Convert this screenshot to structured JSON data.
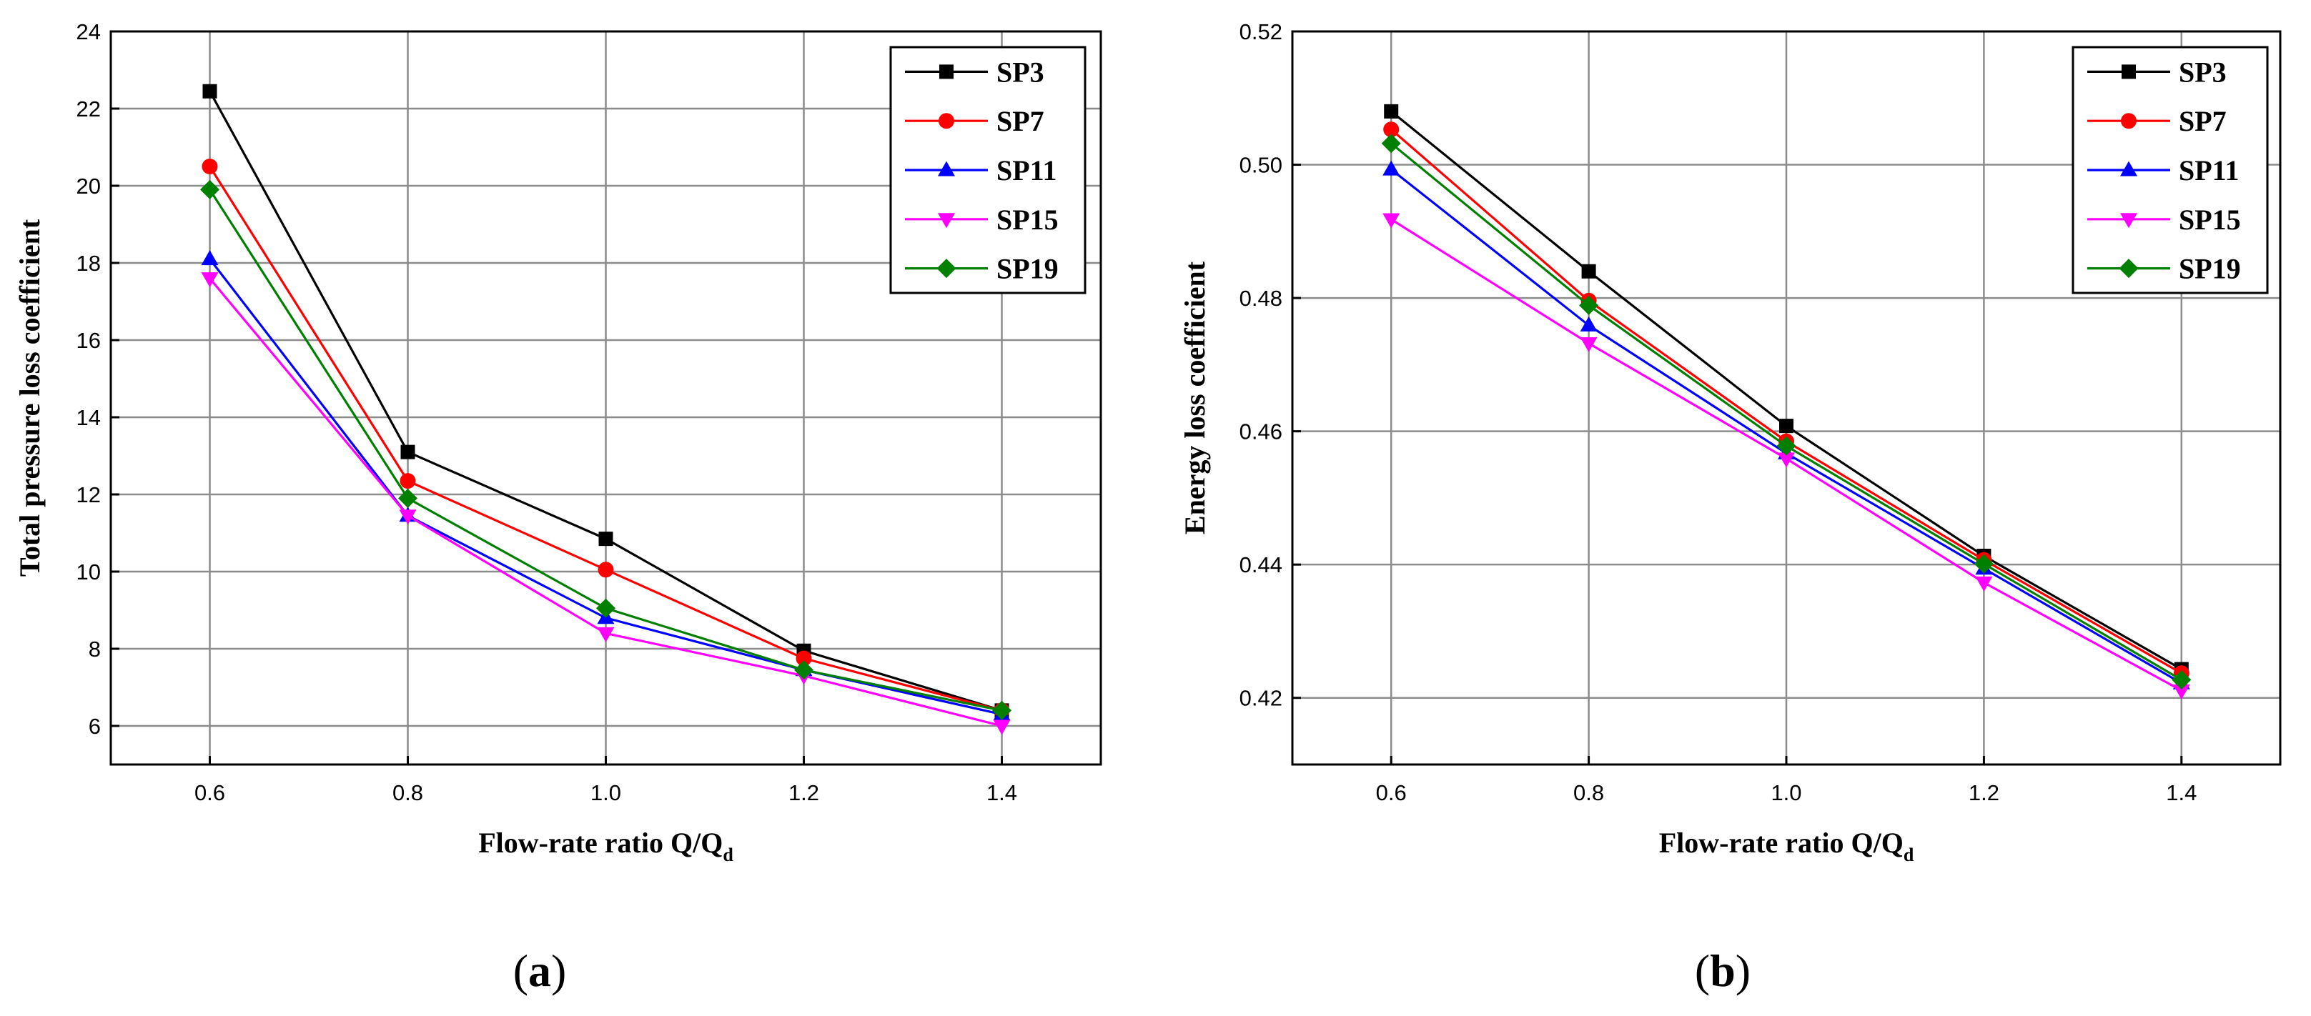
{
  "chart_data": [
    {
      "panel": "(a)",
      "panel_letter": "a",
      "type": "line",
      "title": "",
      "xlabel": "Flow-rate ratio Q/Q",
      "xlabel_subscript": "d",
      "ylabel": "Total pressure loss coefficient",
      "x": [
        0.6,
        0.8,
        1.0,
        1.2,
        1.4
      ],
      "xlim": [
        0.5,
        1.5
      ],
      "ylim": [
        5,
        24
      ],
      "xticks": [
        0.6,
        0.8,
        1.0,
        1.2,
        1.4
      ],
      "xtick_labels": [
        "0.6",
        "0.8",
        "1.0",
        "1.2",
        "1.4"
      ],
      "yticks": [
        6,
        8,
        10,
        12,
        14,
        16,
        18,
        20,
        22,
        24
      ],
      "ytick_labels": [
        "6",
        "8",
        "10",
        "12",
        "14",
        "16",
        "18",
        "20",
        "22",
        "24"
      ],
      "grid": true,
      "legend_position": "top-right",
      "series": [
        {
          "name": "SP3",
          "color": "#000000",
          "marker": "square",
          "values": [
            22.45,
            13.1,
            10.85,
            7.95,
            6.4
          ]
        },
        {
          "name": "SP7",
          "color": "#ff0000",
          "marker": "circle",
          "values": [
            20.5,
            12.35,
            10.05,
            7.75,
            6.4
          ]
        },
        {
          "name": "SP11",
          "color": "#0000ff",
          "marker": "triangle-up",
          "values": [
            18.1,
            11.45,
            8.8,
            7.45,
            6.3
          ]
        },
        {
          "name": "SP15",
          "color": "#ff00ff",
          "marker": "triangle-down",
          "values": [
            17.6,
            11.45,
            8.4,
            7.3,
            6.0
          ]
        },
        {
          "name": "SP19",
          "color": "#008000",
          "marker": "diamond",
          "values": [
            19.9,
            11.9,
            9.05,
            7.45,
            6.4
          ]
        }
      ]
    },
    {
      "panel": "(b)",
      "panel_letter": "b",
      "type": "line",
      "title": "",
      "xlabel": "Flow-rate ratio Q/Q",
      "xlabel_subscript": "d",
      "ylabel": "Energy loss coefficient",
      "x": [
        0.6,
        0.8,
        1.0,
        1.2,
        1.4
      ],
      "xlim": [
        0.5,
        1.5
      ],
      "ylim": [
        0.41,
        0.52
      ],
      "xticks": [
        0.6,
        0.8,
        1.0,
        1.2,
        1.4
      ],
      "xtick_labels": [
        "0.6",
        "0.8",
        "1.0",
        "1.2",
        "1.4"
      ],
      "yticks": [
        0.42,
        0.44,
        0.46,
        0.48,
        0.5,
        0.52
      ],
      "ytick_labels": [
        "0.42",
        "0.44",
        "0.46",
        "0.48",
        "0.50",
        "0.52"
      ],
      "grid": true,
      "legend_position": "top-right",
      "series": [
        {
          "name": "SP3",
          "color": "#000000",
          "marker": "square",
          "values": [
            0.508,
            0.484,
            0.4608,
            0.4413,
            0.4243
          ]
        },
        {
          "name": "SP7",
          "color": "#ff0000",
          "marker": "circle",
          "values": [
            0.5053,
            0.4796,
            0.4585,
            0.4407,
            0.4237
          ]
        },
        {
          "name": "SP11",
          "color": "#0000ff",
          "marker": "triangle-up",
          "values": [
            0.4993,
            0.4759,
            0.4567,
            0.4394,
            0.4222
          ]
        },
        {
          "name": "SP15",
          "color": "#ff00ff",
          "marker": "triangle-down",
          "values": [
            0.4918,
            0.4732,
            0.4559,
            0.4373,
            0.4211
          ]
        },
        {
          "name": "SP19",
          "color": "#008000",
          "marker": "diamond",
          "values": [
            0.5032,
            0.4789,
            0.4578,
            0.4401,
            0.4227
          ]
        }
      ]
    }
  ]
}
